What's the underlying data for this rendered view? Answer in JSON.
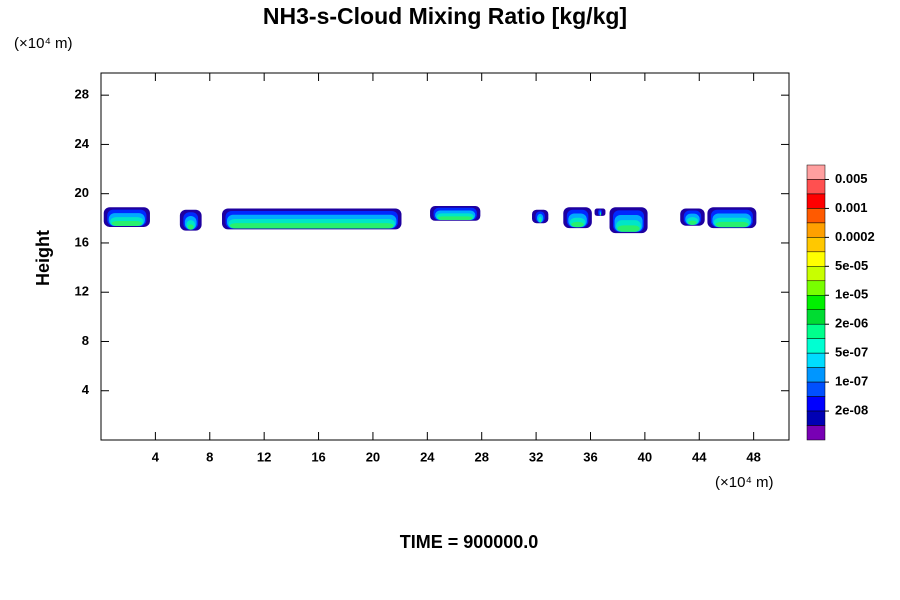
{
  "chart_data": {
    "type": "contour",
    "title": "NH3-s-Cloud Mixing Ratio [kg/kg]",
    "y_label": "Height",
    "y_unit": "(×10⁴ m)",
    "x_unit": "(×10⁴ m)",
    "footer": "TIME = 900000.0",
    "xlim": [
      0,
      50.6
    ],
    "ylim": [
      0,
      29.8
    ],
    "xticks": [
      4,
      8,
      12,
      16,
      20,
      24,
      28,
      32,
      36,
      40,
      44,
      48
    ],
    "yticks": [
      4,
      8,
      12,
      16,
      20,
      24,
      28
    ],
    "colorbar": {
      "colors": [
        "#ff9f9f",
        "#ff5050",
        "#ff0000",
        "#ff5a00",
        "#ffa000",
        "#ffc800",
        "#ffff00",
        "#c8ff00",
        "#78ff00",
        "#00f000",
        "#00dc32",
        "#00ff8c",
        "#00ffd2",
        "#00dcff",
        "#0096ff",
        "#0050ff",
        "#0000ff",
        "#0000b4",
        "#7800b4"
      ],
      "ticks": [
        0.005,
        0.001,
        0.0002,
        {
          "value": 5e-05,
          "label": "5e-05"
        },
        {
          "value": 1e-05,
          "label": "1e-05"
        },
        {
          "value": 2e-06,
          "label": "2e-06"
        },
        {
          "value": 5e-07,
          "label": "5e-07"
        },
        {
          "value": 1e-07,
          "label": "1e-07"
        },
        {
          "value": 2e-08,
          "label": "2e-08"
        }
      ]
    },
    "clouds": [
      {
        "x": [
          0.2,
          3.6
        ],
        "y": [
          17.3,
          18.9
        ]
      },
      {
        "x": [
          5.8,
          7.4
        ],
        "y": [
          17.0,
          18.7
        ]
      },
      {
        "x": [
          8.9,
          22.1
        ],
        "y": [
          17.1,
          18.8
        ]
      },
      {
        "x": [
          24.2,
          27.9
        ],
        "y": [
          17.8,
          19.0
        ]
      },
      {
        "x": [
          31.7,
          32.9
        ],
        "y": [
          17.6,
          18.7
        ]
      },
      {
        "x": [
          34.0,
          36.1
        ],
        "y": [
          17.2,
          18.9
        ]
      },
      {
        "x": [
          36.3,
          37.1
        ],
        "y": [
          18.2,
          18.8
        ]
      },
      {
        "x": [
          37.4,
          40.2
        ],
        "y": [
          16.8,
          18.9
        ]
      },
      {
        "x": [
          42.6,
          44.4
        ],
        "y": [
          17.4,
          18.8
        ]
      },
      {
        "x": [
          44.6,
          48.2
        ],
        "y": [
          17.2,
          18.9
        ]
      }
    ]
  }
}
